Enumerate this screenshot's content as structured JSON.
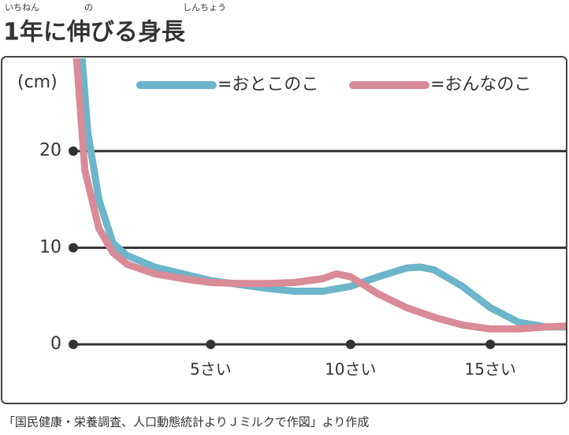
{
  "chart_data": {
    "type": "line",
    "title": "1年に伸びる身長",
    "title_furigana": [
      "いちねん",
      "の",
      "しんちょう"
    ],
    "y_label": "(cm)",
    "source": "「国民健康・栄養調査、人口動態統計よりＪミルクで作図」より作成",
    "xlim": [
      0,
      17.7
    ],
    "ylim": [
      0,
      29.6
    ],
    "xticks": [
      {
        "value": 5,
        "label": "5さい"
      },
      {
        "value": 10,
        "label": "10さい"
      },
      {
        "value": 15,
        "label": "15さい"
      }
    ],
    "yticks": [
      0,
      10,
      20
    ],
    "grid": true,
    "legend": "top",
    "series": [
      {
        "name": "=おとこのこ",
        "color": "#6cb5ca",
        "x": [
          0.4,
          0.6,
          1,
          1.5,
          2,
          3,
          4,
          5,
          6,
          7,
          8,
          9,
          10,
          11,
          12,
          12.5,
          13,
          14,
          15,
          16,
          17,
          17.7
        ],
        "values": [
          29.6,
          22,
          15,
          10.5,
          9.2,
          8,
          7.3,
          6.6,
          6.2,
          5.8,
          5.5,
          5.5,
          6.0,
          7.0,
          7.9,
          8.0,
          7.7,
          6.0,
          3.8,
          2.3,
          1.8,
          1.8
        ]
      },
      {
        "name": "=おんなのこ",
        "color": "#d98b97",
        "x": [
          0.2,
          0.5,
          1,
          1.5,
          2,
          3,
          4,
          5,
          6,
          7,
          8,
          9,
          9.5,
          10,
          11,
          12,
          13,
          14,
          15,
          16,
          17,
          17.7
        ],
        "values": [
          29.6,
          18,
          12,
          9.5,
          8.3,
          7.3,
          6.8,
          6.4,
          6.3,
          6.3,
          6.4,
          6.8,
          7.3,
          7.0,
          5.2,
          3.8,
          2.8,
          2.0,
          1.6,
          1.6,
          1.8,
          1.9
        ]
      }
    ]
  }
}
